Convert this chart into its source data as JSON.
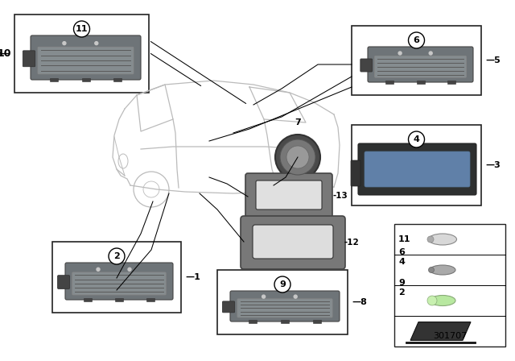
{
  "bg_color": "#ffffff",
  "diagram_id": "301707",
  "car_color": "#cccccc",
  "lamp_body_color": "#707070",
  "lamp_dark_color": "#555555",
  "lamp_inner_color": "#909090",
  "lamp_stripe_color": "#5a5a5a",
  "box_edge_color": "#222222",
  "item7_outer": "#555555",
  "item7_inner": "#888888",
  "item4_body": "#3a3a3a",
  "item4_inner": "#6080a0",
  "gasket_color": "#787878",
  "gasket_inner": "#dddddd",
  "bulb_colors": [
    "#cccccc",
    "#aaaaaa",
    "#c8e8b0"
  ],
  "legend_box_color": "#222222"
}
